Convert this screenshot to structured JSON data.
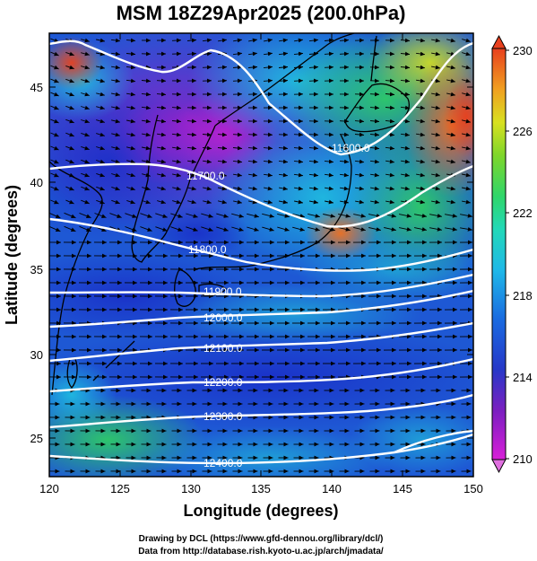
{
  "title": "MSM 18Z29Apr2025 (200.0hPa)",
  "x_axis": {
    "label": "Longitude (degrees)",
    "range": [
      120,
      150
    ],
    "ticks": [
      "120",
      "125",
      "130",
      "135",
      "140",
      "145",
      "150"
    ]
  },
  "y_axis": {
    "label": "Latitude  (degrees)",
    "range": [
      22.4,
      47.6
    ],
    "ticks": [
      "25",
      "30",
      "35",
      "40",
      "45"
    ]
  },
  "colorbar": {
    "range": [
      210,
      230
    ],
    "ticks": [
      "210",
      "214",
      "218",
      "222",
      "226",
      "230"
    ]
  },
  "contours": [
    {
      "label": "11600.0"
    },
    {
      "label": "11700.0"
    },
    {
      "label": "11800.0"
    },
    {
      "label": "11900.0"
    },
    {
      "label": "12000.0"
    },
    {
      "label": "12100.0"
    },
    {
      "label": "12200.0"
    },
    {
      "label": "12300.0"
    },
    {
      "label": "12400.0"
    }
  ],
  "credits": {
    "line1": "Drawing by DCL (https://www.gfd-dennou.org/library/dcl/)",
    "line2": "Data from http://database.rish.kyoto-u.ac.jp/arch/jmadata/"
  }
}
